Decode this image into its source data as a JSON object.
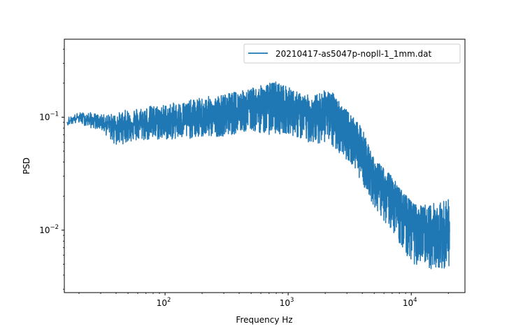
{
  "chart_data": {
    "type": "line",
    "title": "",
    "xlabel": "Frequency Hz",
    "ylabel": "PSD",
    "xscale": "log",
    "yscale": "log",
    "xlim": [
      15.2,
      27300
    ],
    "ylim": [
      0.0028,
      0.49
    ],
    "x_ticks": [
      {
        "value": 100,
        "base": "10",
        "exp": "2"
      },
      {
        "value": 1000,
        "base": "10",
        "exp": "3"
      },
      {
        "value": 10000,
        "base": "10",
        "exp": "4"
      }
    ],
    "y_ticks": [
      {
        "value": 0.1,
        "base": "10",
        "exp": "−1"
      },
      {
        "value": 0.01,
        "base": "10",
        "exp": "−2"
      }
    ],
    "grid": false,
    "legend": {
      "position": "upper right",
      "entries": [
        "20210417-as5047p-nopll-1_1mm.dat"
      ]
    },
    "series": [
      {
        "name": "20210417-as5047p-nopll-1_1mm.dat",
        "color": "#1f77b4",
        "x_range": [
          16,
          20500
        ],
        "envelope": {
          "freq": [
            16,
            20,
            25,
            30,
            40,
            50,
            70,
            100,
            150,
            200,
            300,
            500,
            700,
            800,
            1000,
            1300,
            1600,
            2000,
            2300,
            2600,
            3000,
            3500,
            4000,
            4500,
            5000,
            6000,
            7000,
            8000,
            10000,
            12000,
            15000,
            20000
          ],
          "center": [
            0.092,
            0.1,
            0.095,
            0.092,
            0.085,
            0.088,
            0.09,
            0.092,
            0.095,
            0.097,
            0.108,
            0.125,
            0.135,
            0.133,
            0.125,
            0.11,
            0.105,
            0.122,
            0.118,
            0.1,
            0.082,
            0.068,
            0.052,
            0.04,
            0.03,
            0.024,
            0.022,
            0.017,
            0.012,
            0.01,
            0.0095,
            0.0095
          ],
          "upper": [
            0.1,
            0.11,
            0.11,
            0.105,
            0.108,
            0.118,
            0.125,
            0.13,
            0.14,
            0.15,
            0.16,
            0.18,
            0.2,
            0.21,
            0.185,
            0.16,
            0.155,
            0.175,
            0.165,
            0.14,
            0.115,
            0.095,
            0.08,
            0.058,
            0.042,
            0.036,
            0.03,
            0.024,
            0.018,
            0.0165,
            0.0175,
            0.019
          ],
          "lower": [
            0.085,
            0.088,
            0.08,
            0.078,
            0.055,
            0.06,
            0.062,
            0.063,
            0.064,
            0.066,
            0.068,
            0.075,
            0.07,
            0.07,
            0.072,
            0.062,
            0.058,
            0.06,
            0.052,
            0.048,
            0.042,
            0.034,
            0.026,
            0.02,
            0.016,
            0.012,
            0.01,
            0.0075,
            0.0052,
            0.0045,
            0.0045,
            0.0046
          ]
        }
      }
    ]
  }
}
